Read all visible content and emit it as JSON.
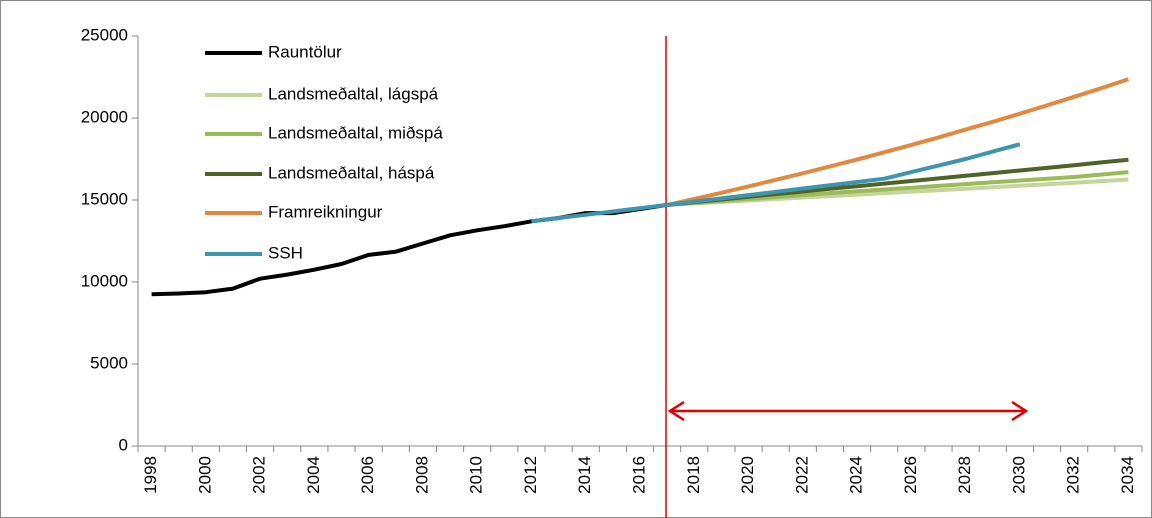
{
  "chart_data": {
    "type": "line",
    "categories": [
      "1998",
      null,
      "2000",
      null,
      "2002",
      null,
      "2004",
      null,
      "2006",
      null,
      "2008",
      null,
      "2010",
      null,
      "2012",
      null,
      "2014",
      null,
      "2016",
      null,
      "2018",
      null,
      "2020",
      null,
      "2022",
      null,
      "2024",
      null,
      "2026",
      null,
      "2028",
      null,
      "2030",
      null,
      "2032",
      null,
      "2034"
    ],
    "ylim": [
      0,
      25000
    ],
    "yticks": [
      0,
      5000,
      10000,
      15000,
      20000,
      25000
    ],
    "grid": false,
    "series": [
      {
        "name": "Rauntölur",
        "color": "#000000",
        "values": [
          9250,
          9300,
          9380,
          9600,
          10200,
          10450,
          10750,
          11100,
          11650,
          11850,
          12350,
          12850,
          13150,
          13400,
          13700,
          13900,
          14200,
          14200,
          14450,
          14700,
          null,
          null,
          null,
          null,
          null,
          null,
          null,
          null,
          null,
          null,
          null,
          null,
          null,
          null,
          null,
          null,
          null
        ]
      },
      {
        "name": "Landsmeðaltal, lágspá",
        "color": "#c3d69b",
        "values": [
          null,
          null,
          null,
          null,
          null,
          null,
          null,
          null,
          null,
          null,
          null,
          null,
          null,
          null,
          null,
          null,
          null,
          null,
          null,
          14700,
          14790,
          14880,
          14970,
          15060,
          15150,
          15240,
          15330,
          15420,
          15510,
          15600,
          15690,
          15780,
          15870,
          15960,
          16050,
          16150,
          16250
        ]
      },
      {
        "name": "Landsmeðaltal, miðspá",
        "color": "#9bbb59",
        "values": [
          null,
          null,
          null,
          null,
          null,
          null,
          null,
          null,
          null,
          null,
          null,
          null,
          null,
          null,
          null,
          null,
          null,
          null,
          null,
          14700,
          14820,
          14940,
          15060,
          15180,
          15300,
          15420,
          15530,
          15640,
          15750,
          15860,
          15970,
          16080,
          16190,
          16300,
          16400,
          16550,
          16700
        ]
      },
      {
        "name": "Landsmeðaltal, háspá",
        "color": "#4f6228",
        "values": [
          null,
          null,
          null,
          null,
          null,
          null,
          null,
          null,
          null,
          null,
          null,
          null,
          null,
          null,
          null,
          null,
          null,
          null,
          null,
          14700,
          14870,
          15030,
          15200,
          15360,
          15520,
          15680,
          15840,
          16000,
          16160,
          16320,
          16480,
          16640,
          16800,
          16960,
          17120,
          17290,
          17450
        ]
      },
      {
        "name": "Framreikningur",
        "color": "#e3893f",
        "values": [
          null,
          null,
          null,
          null,
          null,
          null,
          null,
          null,
          null,
          null,
          null,
          null,
          null,
          null,
          null,
          null,
          null,
          null,
          null,
          14700,
          15070,
          15440,
          15830,
          16230,
          16630,
          17050,
          17470,
          17910,
          18360,
          18820,
          19290,
          19770,
          20260,
          20770,
          21290,
          21820,
          22370
        ]
      },
      {
        "name": "SSH",
        "color": "#3d96ad",
        "values": [
          null,
          null,
          null,
          null,
          null,
          null,
          null,
          null,
          null,
          null,
          null,
          null,
          null,
          null,
          13700,
          13900,
          14100,
          14300,
          14500,
          14700,
          14900,
          15100,
          15300,
          15500,
          15700,
          15900,
          16100,
          16300,
          16700,
          17100,
          17500,
          17950,
          18400,
          null,
          null,
          null,
          null
        ]
      }
    ]
  }
}
